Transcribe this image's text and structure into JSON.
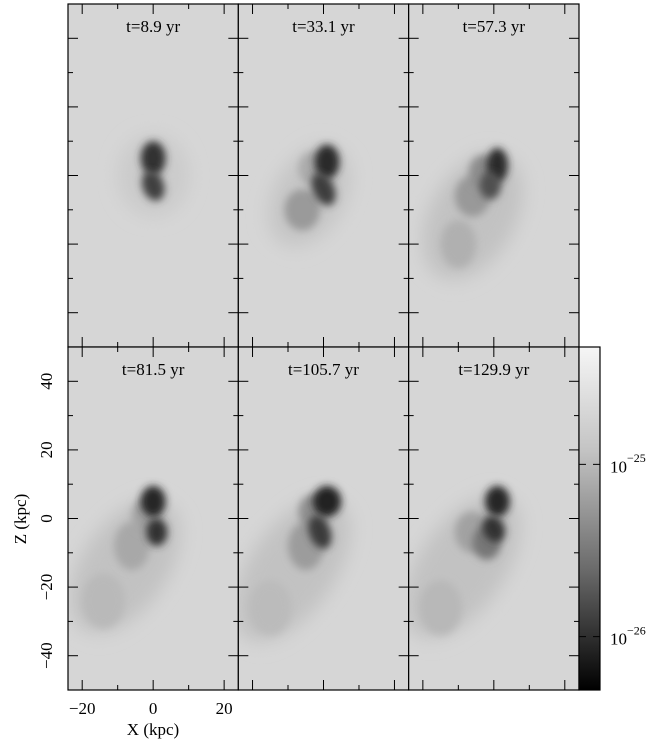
{
  "chart_data": {
    "type": "image-grid",
    "panels": [
      {
        "title": "t=8.9 yr"
      },
      {
        "title": "t=33.1 yr"
      },
      {
        "title": "t=57.3 yr"
      },
      {
        "title": "t=81.5 yr"
      },
      {
        "title": "t=105.7 yr"
      },
      {
        "title": "t=129.9 yr"
      }
    ],
    "xlabel": "X (kpc)",
    "ylabel": "Z (kpc)",
    "xlim": [
      -24,
      24
    ],
    "ylim": [
      -50,
      50
    ],
    "xticks": [
      {
        "value": -20,
        "label": "−20"
      },
      0,
      20
    ],
    "yticks": [
      {
        "value": -40,
        "label": "−40"
      },
      {
        "value": -20,
        "label": "−20"
      },
      0,
      20,
      40
    ],
    "xminorticks": [
      -10,
      10
    ],
    "yminorticks": [
      -30,
      -10,
      10,
      30
    ],
    "colorbar": {
      "scale": "log",
      "lim": [
        4.9e-27,
        4.8e-25
      ],
      "ticks": [
        {
          "value": 1e-25,
          "label": "10",
          "exponent": "−25"
        },
        {
          "value": 1e-26,
          "label": "10",
          "exponent": "−26"
        }
      ]
    }
  }
}
